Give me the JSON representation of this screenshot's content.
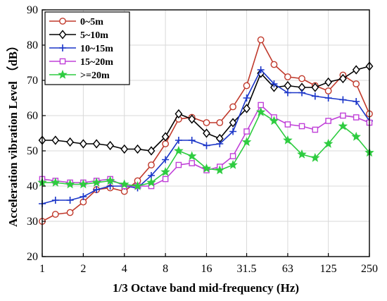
{
  "chart_data": {
    "type": "line",
    "xlabel": "1/3 Octave band mid-frequency (Hz)",
    "ylabel": "Acceleration vibration Level （dB）",
    "x_scale": "log",
    "x_tick_values": [
      1,
      2,
      4,
      8,
      16,
      31.5,
      63,
      125,
      250
    ],
    "x_tick_labels": [
      "1",
      "2",
      "4",
      "8",
      "16",
      "31.5",
      "63",
      "125",
      "250"
    ],
    "ylim": [
      20,
      90
    ],
    "y_ticks": [
      20,
      30,
      40,
      50,
      60,
      70,
      80,
      90
    ],
    "grid": true,
    "legend_position": "top-left",
    "x": [
      1,
      1.25,
      1.6,
      2,
      2.5,
      3.15,
      4,
      5,
      6.3,
      8,
      10,
      12.5,
      16,
      20,
      25,
      31.5,
      40,
      50,
      63,
      80,
      100,
      125,
      160,
      200,
      250
    ],
    "series": [
      {
        "name": "0~5m",
        "color": "#c0392b",
        "marker": "circle",
        "values": [
          30,
          32,
          32.5,
          35.5,
          39,
          39.5,
          38.5,
          41.5,
          46,
          52,
          59,
          59.5,
          58,
          58,
          62.5,
          68.5,
          81.5,
          74.5,
          71,
          70.5,
          68.5,
          67,
          71.5,
          69,
          60.5
        ]
      },
      {
        "name": "5~10m",
        "color": "#000000",
        "marker": "diamond",
        "values": [
          53,
          53,
          52.5,
          52,
          52,
          51.5,
          50.5,
          50.5,
          50,
          54,
          60.5,
          59,
          55,
          53.5,
          58,
          62,
          72,
          68,
          68.5,
          68,
          68,
          69.5,
          70.5,
          73,
          74
        ]
      },
      {
        "name": "10~15m",
        "color": "#1a35c8",
        "marker": "plus",
        "values": [
          35,
          36,
          36,
          37,
          39,
          40,
          40,
          39.5,
          43,
          47.5,
          53,
          53,
          51.5,
          52,
          55.5,
          65,
          73,
          69,
          66.5,
          66.5,
          65.5,
          65,
          64.5,
          64,
          58.5
        ]
      },
      {
        "name": "15~20m",
        "color": "#c040d8",
        "marker": "square",
        "values": [
          42,
          41.5,
          41,
          41,
          41.5,
          42,
          40,
          40,
          40,
          42,
          46,
          46.5,
          44.5,
          45.5,
          48.5,
          55.5,
          63,
          59.5,
          57.5,
          57,
          56,
          58.5,
          60,
          59.5,
          58
        ]
      },
      {
        "name": ">=20m",
        "color": "#2ecc40",
        "marker": "star",
        "values": [
          41,
          41,
          40.5,
          40.5,
          41,
          41.5,
          40.5,
          40,
          41,
          44,
          50,
          48.5,
          45,
          44.5,
          46,
          52.5,
          61,
          58.5,
          53,
          49,
          48,
          52,
          57,
          54,
          49.5
        ]
      }
    ]
  }
}
